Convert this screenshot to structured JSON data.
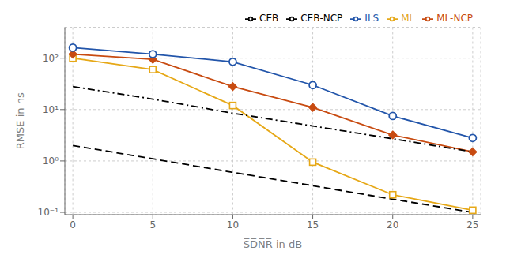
{
  "chart_data": {
    "type": "line",
    "x": [
      0,
      5,
      10,
      15,
      20,
      25
    ],
    "series": [
      {
        "name": "ML",
        "color": "#E6A817",
        "values": [
          100,
          60,
          12,
          0.95,
          0.22,
          0.11
        ],
        "marker": "hollow-square",
        "line_style": "solid"
      },
      {
        "name": "ML-NCP",
        "color": "#C84B11",
        "values": [
          120,
          95,
          28,
          11,
          3.2,
          1.5
        ],
        "marker": "diamond",
        "line_style": "solid"
      },
      {
        "name": "ILS",
        "color": "#2255AA",
        "values": [
          160,
          120,
          85,
          30,
          7.5,
          2.8
        ],
        "marker": "hollow-circle",
        "line_style": "solid"
      },
      {
        "name": "CEB",
        "color": "#000000",
        "values": [
          2.0,
          1.1,
          0.6,
          0.33,
          0.18,
          0.1
        ],
        "marker": "none",
        "line_style": "dashed"
      },
      {
        "name": "CEB-NCP",
        "color": "#000000",
        "values": [
          28,
          16,
          8.5,
          4.8,
          2.7,
          1.5
        ],
        "marker": "none",
        "line_style": "dashdot"
      }
    ],
    "xlabel": "S̅D̅N̅R̅ in dB",
    "ylabel": "RMSE in ns",
    "xlim": [
      -0.5,
      25.5
    ],
    "ylim": [
      0.09,
      400
    ],
    "xticks": [
      0,
      5,
      10,
      15,
      20,
      25
    ],
    "yticks": [
      {
        "value": 0.1,
        "label": "10⁻¹"
      },
      {
        "value": 1,
        "label": "10⁰"
      },
      {
        "value": 10,
        "label": "10¹"
      },
      {
        "value": 100,
        "label": "10²"
      }
    ],
    "log": "y",
    "grid": true,
    "legend": "upper right"
  }
}
